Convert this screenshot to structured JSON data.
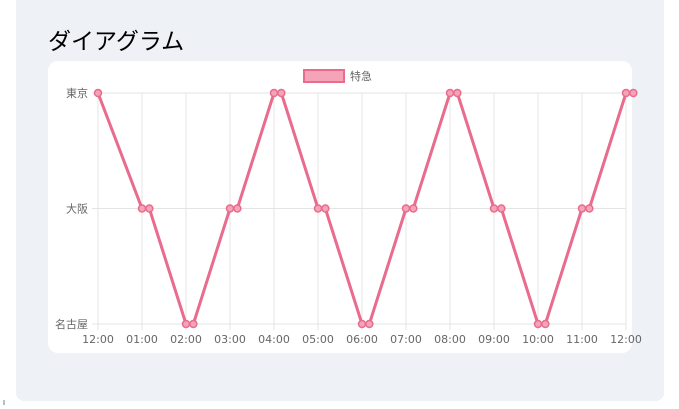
{
  "panel": {
    "title": "ダイアグラム"
  },
  "chart_data": {
    "type": "line",
    "title": "",
    "xlabel": "",
    "ylabel": "",
    "x_ticks": [
      "12:00",
      "01:00",
      "02:00",
      "03:00",
      "04:00",
      "05:00",
      "06:00",
      "07:00",
      "08:00",
      "09:00",
      "10:00",
      "11:00",
      "12:00"
    ],
    "y_categories": [
      "名古屋",
      "大阪",
      "東京"
    ],
    "legend_position": "top-center",
    "grid": true,
    "series": [
      {
        "name": "特急",
        "color": "#e96b8d",
        "fill": "#f5a3b7",
        "points": [
          [
            "12:00",
            "東京"
          ],
          [
            "01:00",
            "大阪"
          ],
          [
            "01:10",
            "大阪"
          ],
          [
            "02:00",
            "名古屋"
          ],
          [
            "02:10",
            "名古屋"
          ],
          [
            "03:00",
            "大阪"
          ],
          [
            "03:10",
            "大阪"
          ],
          [
            "04:00",
            "東京"
          ],
          [
            "04:10",
            "東京"
          ],
          [
            "05:00",
            "大阪"
          ],
          [
            "05:10",
            "大阪"
          ],
          [
            "06:00",
            "名古屋"
          ],
          [
            "06:10",
            "名古屋"
          ],
          [
            "07:00",
            "大阪"
          ],
          [
            "07:10",
            "大阪"
          ],
          [
            "08:00",
            "東京"
          ],
          [
            "08:10",
            "東京"
          ],
          [
            "09:00",
            "大阪"
          ],
          [
            "09:10",
            "大阪"
          ],
          [
            "10:00",
            "名古屋"
          ],
          [
            "10:10",
            "名古屋"
          ],
          [
            "11:00",
            "大阪"
          ],
          [
            "11:10",
            "大阪"
          ],
          [
            "12:00",
            "東京"
          ],
          [
            "12:10",
            "東京"
          ]
        ]
      }
    ]
  }
}
